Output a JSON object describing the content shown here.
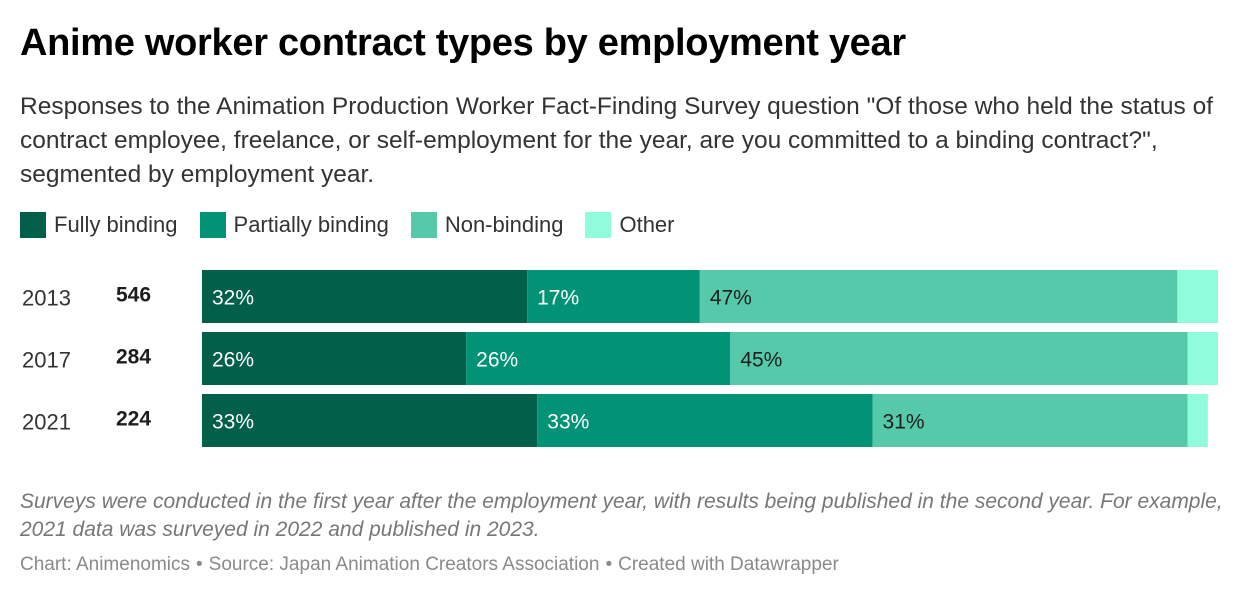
{
  "title": "Anime worker contract types by employment year",
  "subtitle": "Responses to the Animation Production Worker Fact-Finding Survey question \"Of those who held the status of contract employee, freelance, or self-employment for the year, are you committed to a binding contract?\", segmented by employment year.",
  "footnote": "Surveys were conducted in the first year after the employment year, with results being published in the second year. For example, 2021 data was surveyed in 2022 and published in 2023.",
  "credits": {
    "chart": "Chart: Animenomics",
    "separator": "•",
    "source": "Source: Japan Animation Creators Association",
    "created": "Created with Datawrapper"
  },
  "chart_data": {
    "type": "bar",
    "orientation": "horizontal",
    "stacked": true,
    "normalized_percent": true,
    "categories": [
      "2013",
      "2017",
      "2021"
    ],
    "counts": [
      "546",
      "284",
      "224"
    ],
    "series": [
      {
        "name": "Fully binding",
        "color": "#025f4a",
        "values": [
          32,
          26,
          33
        ],
        "labels": [
          "32%",
          "26%",
          "33%"
        ],
        "label_color": "#ffffff"
      },
      {
        "name": "Partially binding",
        "color": "#029276",
        "values": [
          17,
          26,
          33
        ],
        "labels": [
          "17%",
          "26%",
          "33%"
        ],
        "label_color": "#ffffff"
      },
      {
        "name": "Non-binding",
        "color": "#57c9ab",
        "values": [
          47,
          45,
          31
        ],
        "labels": [
          "47%",
          "45%",
          "31%"
        ],
        "label_color": "#1d1d1d"
      },
      {
        "name": "Other",
        "color": "#90fcdb",
        "values": [
          4,
          3,
          2
        ],
        "labels": [
          "",
          "",
          ""
        ],
        "label_color": "#1d1d1d"
      }
    ],
    "xlim": [
      0,
      100
    ],
    "grid": false,
    "legend_position": "top-left"
  }
}
